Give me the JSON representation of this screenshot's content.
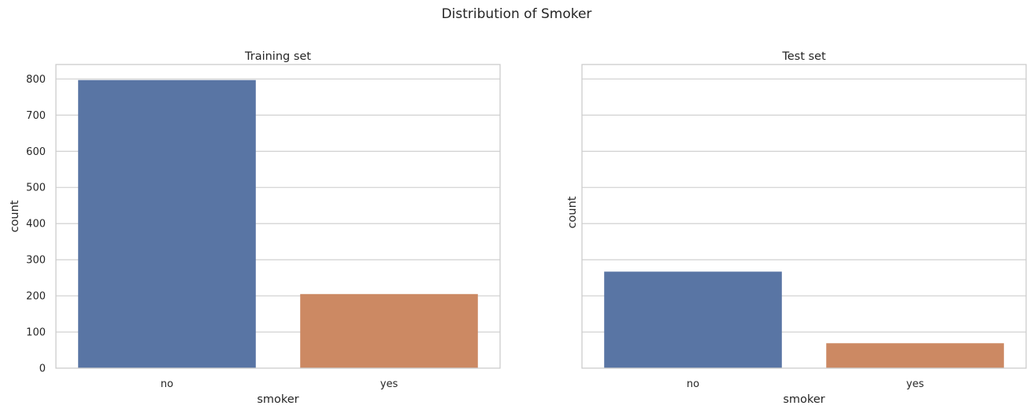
{
  "title": "Distribution of Smoker",
  "colors": {
    "no": "#5975a4",
    "yes": "#cc8963"
  },
  "chart_data": [
    {
      "type": "bar",
      "title": "Training set",
      "xlabel": "smoker",
      "ylabel": "count",
      "categories": [
        "no",
        "yes"
      ],
      "values": [
        797,
        205
      ],
      "ylim": [
        0,
        840
      ],
      "yticks": [
        0,
        100,
        200,
        300,
        400,
        500,
        600,
        700,
        800
      ],
      "grid": true,
      "show_ytick_labels": true
    },
    {
      "type": "bar",
      "title": "Test set",
      "xlabel": "smoker",
      "ylabel": "count",
      "categories": [
        "no",
        "yes"
      ],
      "values": [
        267,
        69
      ],
      "ylim": [
        0,
        840
      ],
      "yticks": [
        0,
        100,
        200,
        300,
        400,
        500,
        600,
        700,
        800
      ],
      "grid": true,
      "show_ytick_labels": false
    }
  ]
}
